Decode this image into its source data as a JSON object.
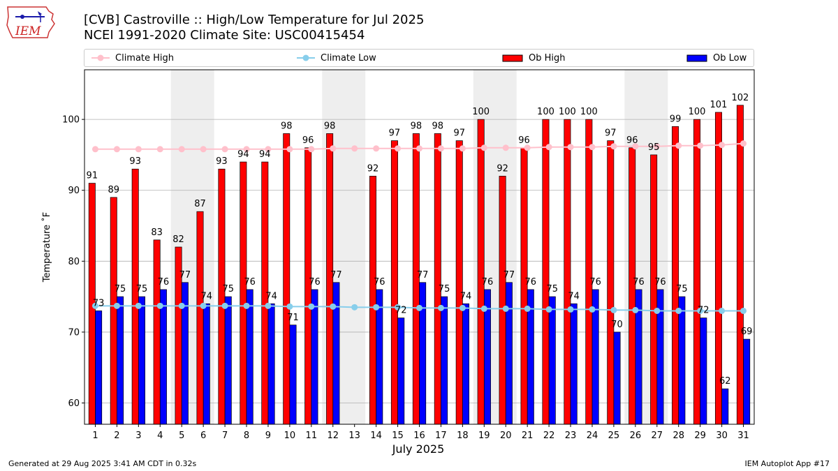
{
  "logo": {
    "text": "IEM"
  },
  "title_line1": "[CVB] Castroville :: High/Low Temperature for Jul 2025",
  "title_line2": "NCEI 1991-2020 Climate Site: USC00415454",
  "footer_left": "Generated at 29 Aug 2025 3:41 AM CDT in 0.32s",
  "footer_right": "IEM Autoplot App #17",
  "colors": {
    "ob_high": "#ff0000",
    "ob_low": "#0000ff",
    "climate_high": "#ffc0cb",
    "climate_low": "#87ceeb",
    "weekend_shade": "#eeeeee",
    "grid": "#b0b0b0"
  },
  "chart_data": {
    "type": "bar",
    "xlabel": "July 2025",
    "ylabel": "Temperature ˚F",
    "ylim": [
      57,
      107
    ],
    "yticks": [
      60,
      70,
      80,
      90,
      100
    ],
    "grid": "horizontal",
    "legend_position": "top",
    "categories": [
      "1",
      "2",
      "3",
      "4",
      "5",
      "6",
      "7",
      "8",
      "9",
      "10",
      "11",
      "12",
      "13",
      "14",
      "15",
      "16",
      "17",
      "18",
      "19",
      "20",
      "21",
      "22",
      "23",
      "24",
      "25",
      "26",
      "27",
      "28",
      "29",
      "30",
      "31"
    ],
    "shaded_days": [
      [
        5,
        6
      ],
      [
        12,
        13
      ],
      [
        19,
        20
      ],
      [
        26,
        27
      ]
    ],
    "series": [
      {
        "name": "Ob High",
        "kind": "bar",
        "values": [
          91,
          89,
          93,
          83,
          82,
          87,
          93,
          94,
          94,
          98,
          96,
          98,
          null,
          92,
          97,
          98,
          98,
          97,
          100,
          92,
          96,
          100,
          100,
          100,
          97,
          96,
          95,
          99,
          100,
          101,
          102
        ]
      },
      {
        "name": "Ob Low",
        "kind": "bar",
        "values": [
          73,
          75,
          75,
          76,
          77,
          74,
          75,
          76,
          74,
          71,
          76,
          77,
          null,
          76,
          72,
          77,
          75,
          74,
          76,
          77,
          76,
          75,
          74,
          76,
          70,
          76,
          76,
          75,
          72,
          62,
          69
        ]
      },
      {
        "name": "Climate High",
        "kind": "line",
        "values": [
          95.8,
          95.8,
          95.8,
          95.8,
          95.8,
          95.8,
          95.8,
          95.8,
          95.8,
          95.8,
          95.8,
          95.9,
          95.9,
          95.9,
          95.9,
          95.9,
          95.9,
          95.9,
          96.0,
          96.0,
          96.0,
          96.1,
          96.1,
          96.1,
          96.2,
          96.2,
          96.2,
          96.3,
          96.3,
          96.4,
          96.6
        ]
      },
      {
        "name": "Climate Low",
        "kind": "line",
        "values": [
          73.7,
          73.7,
          73.7,
          73.7,
          73.7,
          73.7,
          73.7,
          73.7,
          73.7,
          73.6,
          73.6,
          73.6,
          73.5,
          73.5,
          73.5,
          73.4,
          73.4,
          73.4,
          73.3,
          73.3,
          73.3,
          73.2,
          73.2,
          73.2,
          73.1,
          73.1,
          73.0,
          73.0,
          73.0,
          73.0,
          73.0
        ]
      }
    ]
  }
}
